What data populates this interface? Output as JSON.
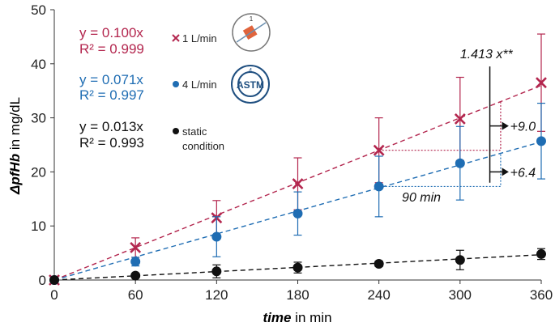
{
  "chart_data": {
    "type": "scatter",
    "xlabel": {
      "emphasis": "time",
      "rest": "in min"
    },
    "ylabel": {
      "emphasis": "ΔpfHb",
      "rest": "in mg/dL"
    },
    "x": [
      0,
      60,
      120,
      180,
      240,
      300,
      360
    ],
    "xlim": [
      0,
      360
    ],
    "xticks": [
      0,
      60,
      120,
      180,
      240,
      300,
      360
    ],
    "ylim": [
      0,
      50
    ],
    "yticks": [
      0,
      10,
      20,
      30,
      40,
      50
    ],
    "series": [
      {
        "name": "1 L/min",
        "color": "#b3264e",
        "marker": "x",
        "values": [
          0,
          6,
          11.5,
          17.8,
          24,
          29.8,
          36.5
        ],
        "errors": [
          0,
          1.8,
          3.2,
          4.8,
          6,
          7.7,
          9
        ],
        "equation": "y = 0.100x",
        "r2": "R² = 0.999",
        "trend_slope": 0.1
      },
      {
        "name": "4 L/min",
        "color": "#1f6db3",
        "marker": "circle",
        "values": [
          0,
          3.4,
          8,
          12.3,
          17.3,
          21.6,
          25.7
        ],
        "errors": [
          0,
          0.8,
          3.7,
          4,
          5.6,
          6.8,
          7
        ],
        "equation": "y = 0.071x",
        "r2": "R² = 0.997",
        "trend_slope": 0.071
      },
      {
        "name": "static condition",
        "color": "#111111",
        "marker": "circle",
        "values": [
          0,
          0.8,
          1.6,
          2.3,
          3,
          3.7,
          4.8
        ],
        "errors": [
          0,
          0.3,
          1.2,
          1,
          0.5,
          1.8,
          1
        ],
        "equation": "y = 0.013x",
        "r2": "R² = 0.993",
        "trend_slope": 0.013
      }
    ],
    "annotations": [
      "1.413 x**",
      "+9.0",
      "+6.4",
      "90 min"
    ]
  }
}
